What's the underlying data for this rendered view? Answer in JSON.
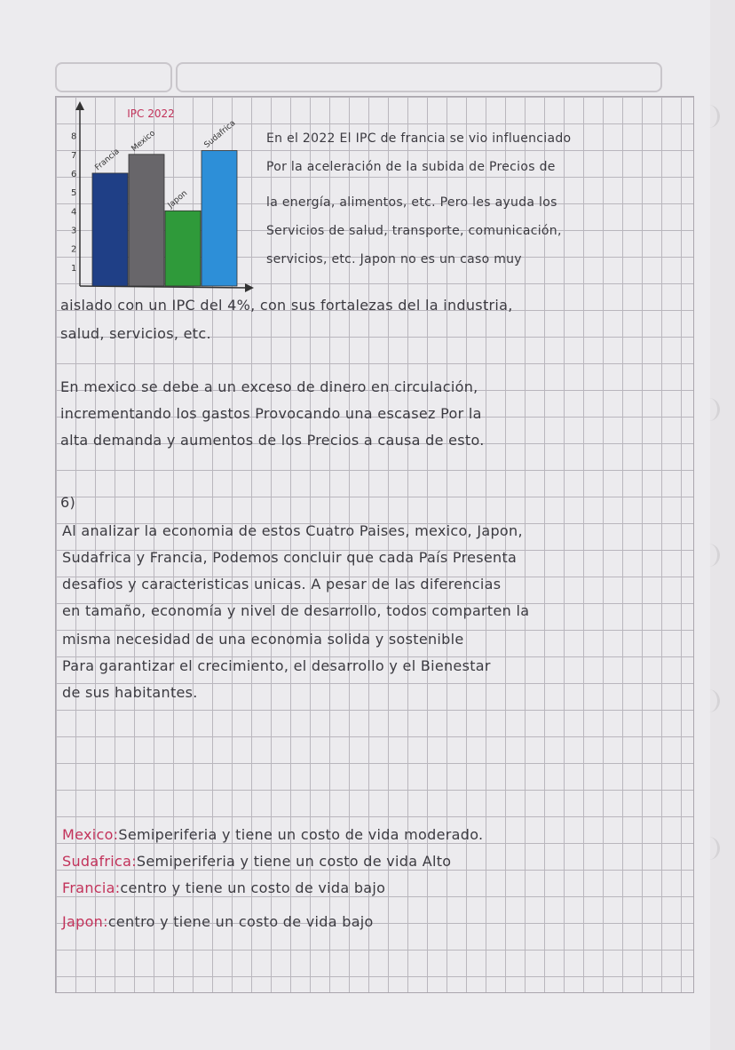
{
  "chart_data": {
    "type": "bar",
    "title": "IPC 2022",
    "categories": [
      "Francia",
      "Mexico",
      "Japon",
      "Sudafrica"
    ],
    "values": [
      6,
      7,
      4,
      7.2
    ],
    "colors": [
      "#1f3f86",
      "#68666a",
      "#2f9a3a",
      "#2d8fd8"
    ],
    "y_ticks": [
      "1",
      "2",
      "3",
      "4",
      "5",
      "6",
      "7",
      "8"
    ],
    "ylim": [
      0,
      8.5
    ],
    "grid": false
  },
  "text": {
    "right_col": [
      "En el 2022 El IPC de francia se vio influenciado",
      "Por la aceleración de la subida de Precios de",
      "la energía, alimentos, etc. Pero les ayuda los",
      "Servicios de salud, transporte, comunicación,",
      "servicios, etc. Japon no es un caso muy"
    ],
    "para1": [
      "aislado con un IPC del 4%, con sus fortalezas del la industria,",
      "salud, servicios, etc."
    ],
    "para2": [
      "En mexico se debe a un exceso de dinero en circulación,",
      "incrementando los gastos Provocando una escasez Por la",
      "alta demanda y aumentos de los Precios a causa de esto."
    ],
    "section_label": "6)",
    "para3": [
      "Al analizar la economia de estos Cuatro Paises, mexico, Japon,",
      "Sudafrica y Francia, Podemos concluir que cada País Presenta",
      "desafios y caracteristicas unicas. A pesar de las diferencias",
      "en tamaño, economía y nivel de desarrollo, todos comparten la",
      "misma necesidad de una economia solida y sostenible",
      "Para garantizar el crecimiento, el desarrollo y el Bienestar",
      "de sus habitantes."
    ],
    "summary": [
      {
        "label": "Mexico:",
        "text": "Semiperiferia y tiene un costo de vida moderado."
      },
      {
        "label": "Sudafrica:",
        "text": "Semiperiferia y tiene un costo de vida Alto"
      },
      {
        "label": "Francia:",
        "text": "centro y tiene un costo de vida bajo"
      },
      {
        "label": "Japon:",
        "text": "centro y tiene un costo de vida bajo"
      }
    ]
  }
}
